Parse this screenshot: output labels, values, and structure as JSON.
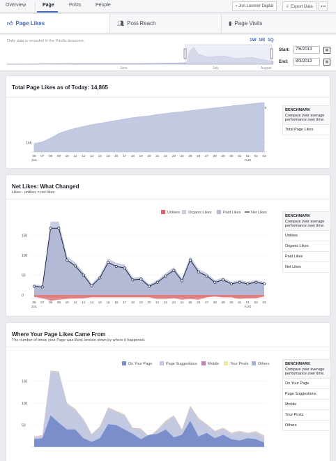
{
  "topnav": {
    "tabs": [
      {
        "label": "Overview"
      },
      {
        "label": "Page"
      },
      {
        "label": "Posts"
      },
      {
        "label": "People"
      }
    ],
    "page_name": "Jon Loomer Digital",
    "export_label": "Export Data",
    "more_label": "●●●"
  },
  "subtabs": [
    {
      "label": "Page Likes",
      "icon": "thumbs-up-icon"
    },
    {
      "label": "Post Reach",
      "icon": "people-icon"
    },
    {
      "label": "Page Visits",
      "icon": "bar-chart-icon"
    }
  ],
  "range": {
    "tz_note": "Daily data is recorded in the Pacific timezone.",
    "buttons": [
      "1W",
      "1M",
      "1Q"
    ],
    "months": [
      "June",
      "July",
      "August"
    ],
    "start_label": "Start:",
    "start_value": "7/6/2013",
    "end_label": "End:",
    "end_value": "8/3/2013"
  },
  "x_ticks": [
    "06",
    "07",
    "08",
    "09",
    "10",
    "11",
    "12",
    "13",
    "14",
    "15",
    "16",
    "17",
    "18",
    "19",
    "20",
    "21",
    "22",
    "23",
    "24",
    "25",
    "26",
    "27",
    "28",
    "29",
    "30",
    "31",
    "01",
    "02",
    "03"
  ],
  "x_sub": {
    "jul": "JUL",
    "aug": "AUG"
  },
  "total": {
    "title": "Total Page Likes as of Today: 14,865",
    "legend": "Total Page Likes",
    "benchmark": {
      "head": "BENCHMARK",
      "desc": "Compare your average performance over time.",
      "items": [
        "Total Page Likes"
      ]
    },
    "chart_data": {
      "type": "area",
      "ytick": "14K",
      "values": [
        13980,
        14020,
        14100,
        14200,
        14260,
        14310,
        14350,
        14390,
        14420,
        14450,
        14480,
        14510,
        14540,
        14560,
        14580,
        14610,
        14630,
        14650,
        14670,
        14690,
        14710,
        14730,
        14750,
        14770,
        14790,
        14810,
        14830,
        14850,
        14865
      ]
    }
  },
  "net": {
    "title": "Net Likes: What Changed",
    "subtitle": "Likes - unlikes = net likes",
    "legend": [
      "Unlikes",
      "Organic Likes",
      "Paid Likes",
      "Net Likes"
    ],
    "colors": {
      "unlikes": "#e06666",
      "organic": "#c8cce0",
      "paid": "#b4bad6",
      "net": "#1c2a48"
    },
    "benchmark": {
      "head": "BENCHMARK",
      "desc": "Compare your average performance over time.",
      "items": [
        "Unlikes",
        "Organic Likes",
        "Paid Likes",
        "Net Likes"
      ]
    },
    "chart_data": {
      "type": "line",
      "yticks": [
        "150",
        "100",
        "50",
        "0"
      ],
      "net": [
        22,
        20,
        168,
        168,
        88,
        73,
        50,
        23,
        43,
        82,
        72,
        68,
        38,
        40,
        22,
        32,
        48,
        62,
        36,
        88,
        58,
        48,
        32,
        38,
        28,
        32,
        28,
        32,
        28
      ],
      "unlikes": [
        -5,
        -8,
        -14,
        -12,
        -10,
        -9,
        -8,
        -6,
        -6,
        -6,
        -6,
        -6,
        -6,
        -6,
        -6,
        -10,
        -10,
        -8,
        -12,
        -10,
        -12,
        -6,
        -4,
        -6,
        -6,
        -10,
        -8,
        -8,
        -4
      ]
    }
  },
  "sources": {
    "title": "Where Your Page Likes Came From",
    "subtitle": "The number of times your Page was liked, broken down by where it happened.",
    "legend": [
      "On Your Page",
      "Page Suggestions",
      "Mobile",
      "Your Posts",
      "Others"
    ],
    "colors": {
      "on_page": "#7b8ecc",
      "suggestions": "#c4c9e2",
      "mobile": "#c77fb1",
      "posts": "#f0e6a5",
      "others": "#a9b1d6"
    },
    "benchmark": {
      "head": "BENCHMARK",
      "desc": "Compare your average performance over time.",
      "items": [
        "On Your Page",
        "Page Suggestions",
        "Mobile",
        "Your Posts",
        "Others"
      ]
    },
    "chart_data": {
      "type": "area",
      "yticks": [
        "150",
        "100",
        "50"
      ],
      "on_page": [
        18,
        20,
        72,
        55,
        40,
        40,
        20,
        12,
        20,
        52,
        50,
        40,
        30,
        18,
        28,
        30,
        40,
        22,
        28,
        60,
        24,
        32,
        20,
        28,
        18,
        15,
        20,
        18,
        10
      ],
      "total": [
        22,
        25,
        172,
        170,
        98,
        85,
        62,
        28,
        45,
        88,
        80,
        72,
        42,
        40,
        22,
        38,
        58,
        70,
        38,
        92,
        64,
        50,
        35,
        42,
        30,
        35,
        30,
        34,
        24
      ]
    }
  }
}
